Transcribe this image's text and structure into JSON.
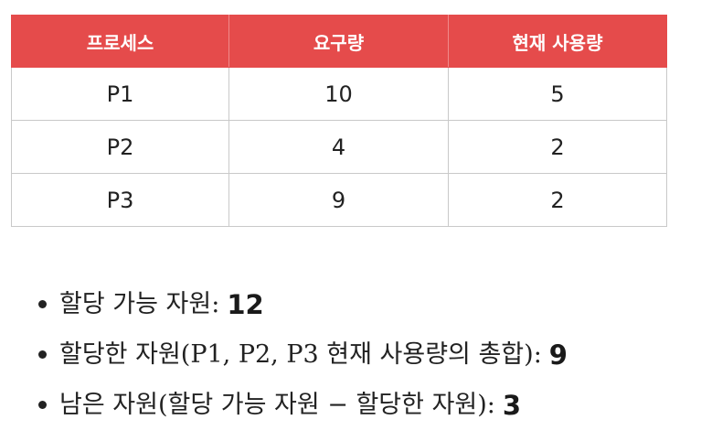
{
  "table": {
    "headers": [
      "프로세스",
      "요구량",
      "현재 사용량"
    ],
    "rows": [
      [
        "P1",
        "10",
        "5"
      ],
      [
        "P2",
        "4",
        "2"
      ],
      [
        "P3",
        "9",
        "2"
      ]
    ],
    "header_color": "#e54b4b"
  },
  "bullets": [
    {
      "label": "할당 가능 자원",
      "value": "12"
    },
    {
      "label": "할당한 자원(P1, P2, P3 현재 사용량의 총합)",
      "value": "9"
    },
    {
      "label": "남은 자원(할당 가능 자원 − 할당한 자원)",
      "value": "3"
    }
  ]
}
